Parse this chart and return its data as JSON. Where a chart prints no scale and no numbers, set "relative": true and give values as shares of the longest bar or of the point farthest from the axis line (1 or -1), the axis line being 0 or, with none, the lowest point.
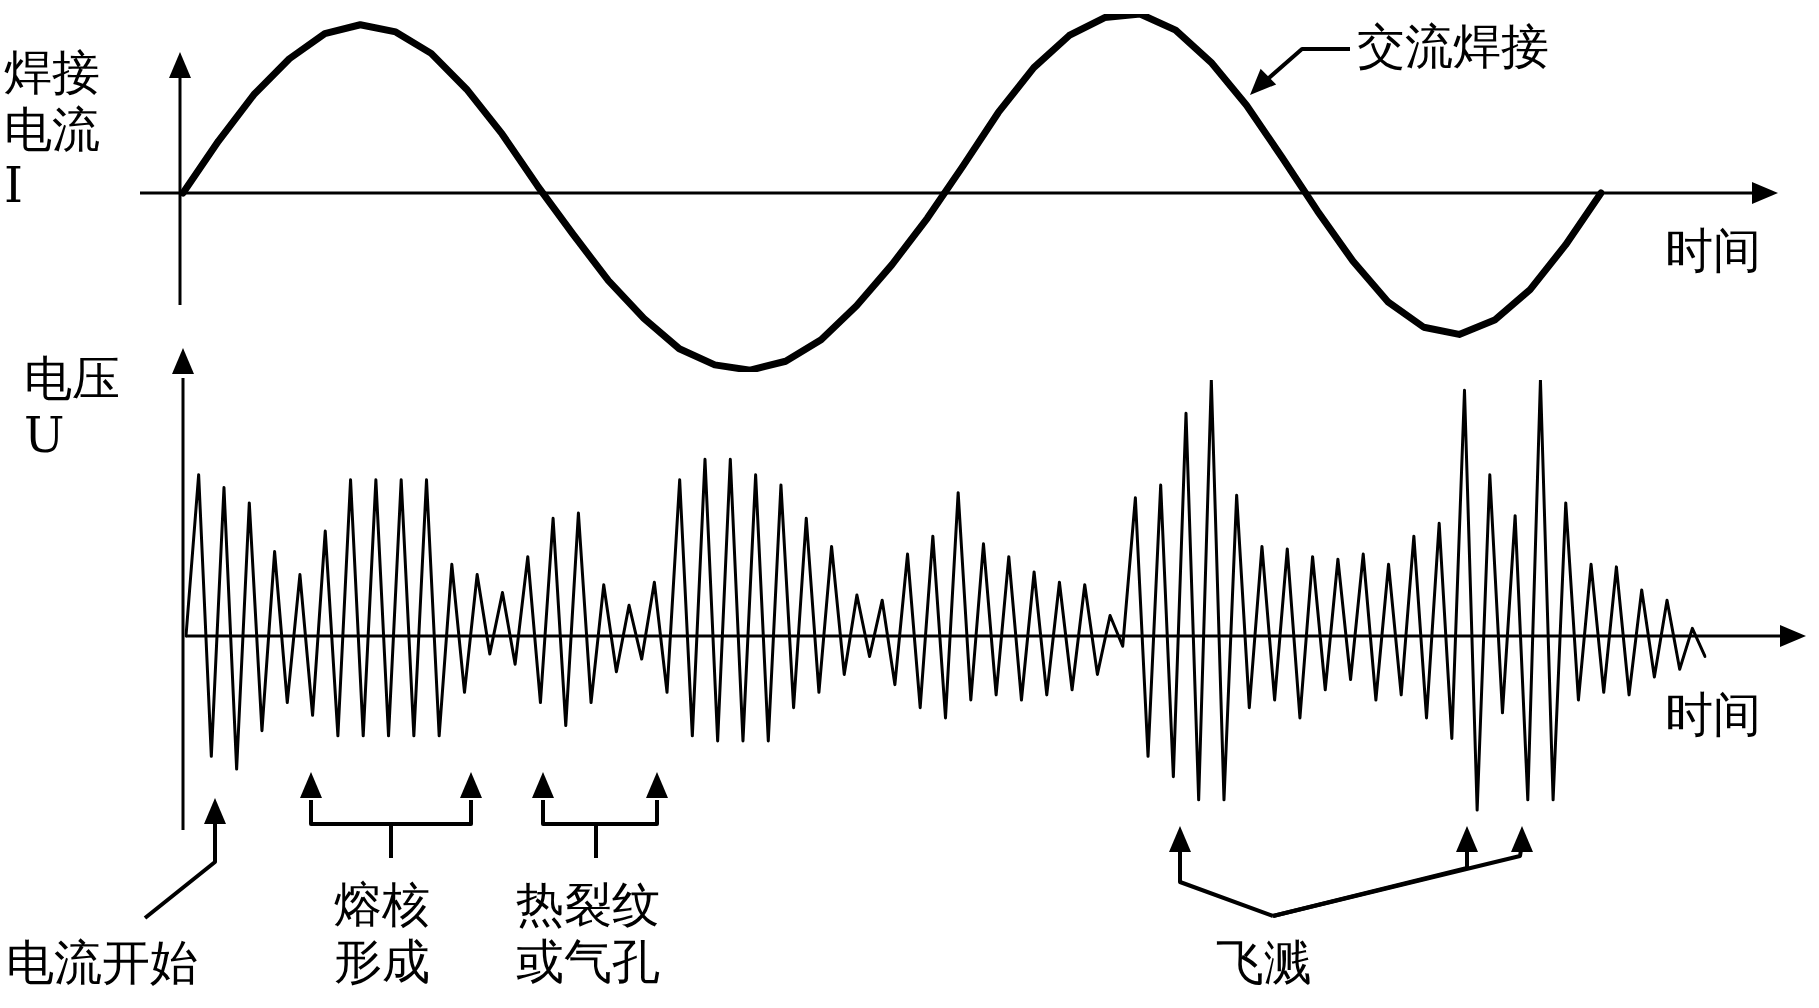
{
  "chart_data": [
    {
      "type": "line",
      "relative": true,
      "tick_labels": false,
      "ylabel": "焊接电流 I",
      "xlabel": "时间",
      "annotations": [
        "交流焊接"
      ],
      "color": "#000000",
      "categories": [
        null,
        null,
        null,
        null,
        null,
        null,
        null,
        null,
        null,
        null,
        null,
        null,
        null,
        null,
        null,
        null,
        null,
        null,
        null,
        null,
        null,
        null,
        null,
        null,
        null,
        null,
        null,
        null,
        null,
        null,
        null,
        null,
        null,
        null,
        null,
        null,
        null,
        null,
        null,
        null,
        null
      ],
      "values": [
        0,
        0.29,
        0.55,
        0.75,
        0.89,
        0.94,
        0.9,
        0.78,
        0.58,
        0.33,
        0.04,
        -0.23,
        -0.49,
        -0.7,
        -0.87,
        -0.96,
        -0.99,
        -0.94,
        -0.82,
        -0.63,
        -0.4,
        -0.14,
        0.15,
        0.45,
        0.7,
        0.88,
        0.98,
        1,
        0.91,
        0.73,
        0.49,
        0.2,
        -0.1,
        -0.38,
        -0.61,
        -0.75,
        -0.79,
        -0.71,
        -0.54,
        -0.29,
        0
      ]
    },
    {
      "type": "line",
      "relative": true,
      "tick_labels": false,
      "ylabel": "电压 U",
      "xlabel": "时间",
      "annotations": [
        "电流开始",
        "熔核形成",
        "热裂纹或气孔",
        "飞溅"
      ],
      "color": "#000000",
      "categories": [
        null,
        null,
        null,
        null,
        null,
        null,
        null,
        null,
        null,
        null,
        null,
        null,
        null,
        null,
        null,
        null,
        null,
        null,
        null,
        null,
        null,
        null,
        null,
        null,
        null,
        null,
        null,
        null,
        null,
        null,
        null,
        null,
        null,
        null,
        null,
        null,
        null,
        null,
        null,
        null,
        null,
        null,
        null,
        null,
        null,
        null,
        null,
        null,
        null,
        null,
        null,
        null,
        null,
        null,
        null,
        null,
        null,
        null,
        null,
        null,
        null,
        null,
        null,
        null,
        null,
        null,
        null,
        null,
        null,
        null,
        null,
        null,
        null,
        null,
        null,
        null,
        null,
        null,
        null,
        null,
        null,
        null,
        null,
        null,
        null,
        null,
        null,
        null,
        null,
        null,
        null,
        null,
        null,
        null,
        null,
        null,
        null,
        null,
        null,
        null,
        null,
        null,
        null,
        null,
        null,
        null,
        null,
        null,
        null,
        null,
        null,
        null,
        null,
        null,
        null,
        null,
        null,
        null,
        null,
        null,
        null
      ],
      "values": [
        0,
        0.63,
        -0.47,
        0.58,
        -0.52,
        0.52,
        -0.37,
        0.33,
        -0.26,
        0.24,
        -0.31,
        0.41,
        -0.39,
        0.61,
        -0.39,
        0.61,
        -0.39,
        0.61,
        -0.39,
        0.61,
        -0.39,
        0.28,
        -0.22,
        0.24,
        -0.07,
        0.17,
        -0.11,
        0.31,
        -0.26,
        0.46,
        -0.35,
        0.48,
        -0.26,
        0.2,
        -0.14,
        0.12,
        -0.09,
        0.21,
        -0.22,
        0.61,
        -0.39,
        0.69,
        -0.41,
        0.69,
        -0.41,
        0.63,
        -0.41,
        0.59,
        -0.28,
        0.46,
        -0.22,
        0.35,
        -0.15,
        0.16,
        -0.08,
        0.14,
        -0.19,
        0.32,
        -0.28,
        0.39,
        -0.32,
        0.56,
        -0.25,
        0.36,
        -0.23,
        0.31,
        -0.25,
        0.25,
        -0.23,
        0.21,
        -0.21,
        0.2,
        -0.15,
        0.08,
        -0.04,
        0.54,
        -0.47,
        0.59,
        -0.55,
        0.87,
        -0.64,
        1,
        -0.64,
        0.55,
        -0.28,
        0.35,
        -0.25,
        0.34,
        -0.32,
        0.31,
        -0.21,
        0.3,
        -0.17,
        0.32,
        -0.25,
        0.28,
        -0.23,
        0.39,
        -0.32,
        0.44,
        -0.4,
        0.96,
        -0.68,
        0.63,
        -0.3,
        0.47,
        -0.64,
        1,
        -0.64,
        0.52,
        -0.25,
        0.28,
        -0.22,
        0.27,
        -0.23,
        0.18,
        -0.16,
        0.14,
        -0.13,
        0.03,
        -0.08
      ]
    }
  ]
}
